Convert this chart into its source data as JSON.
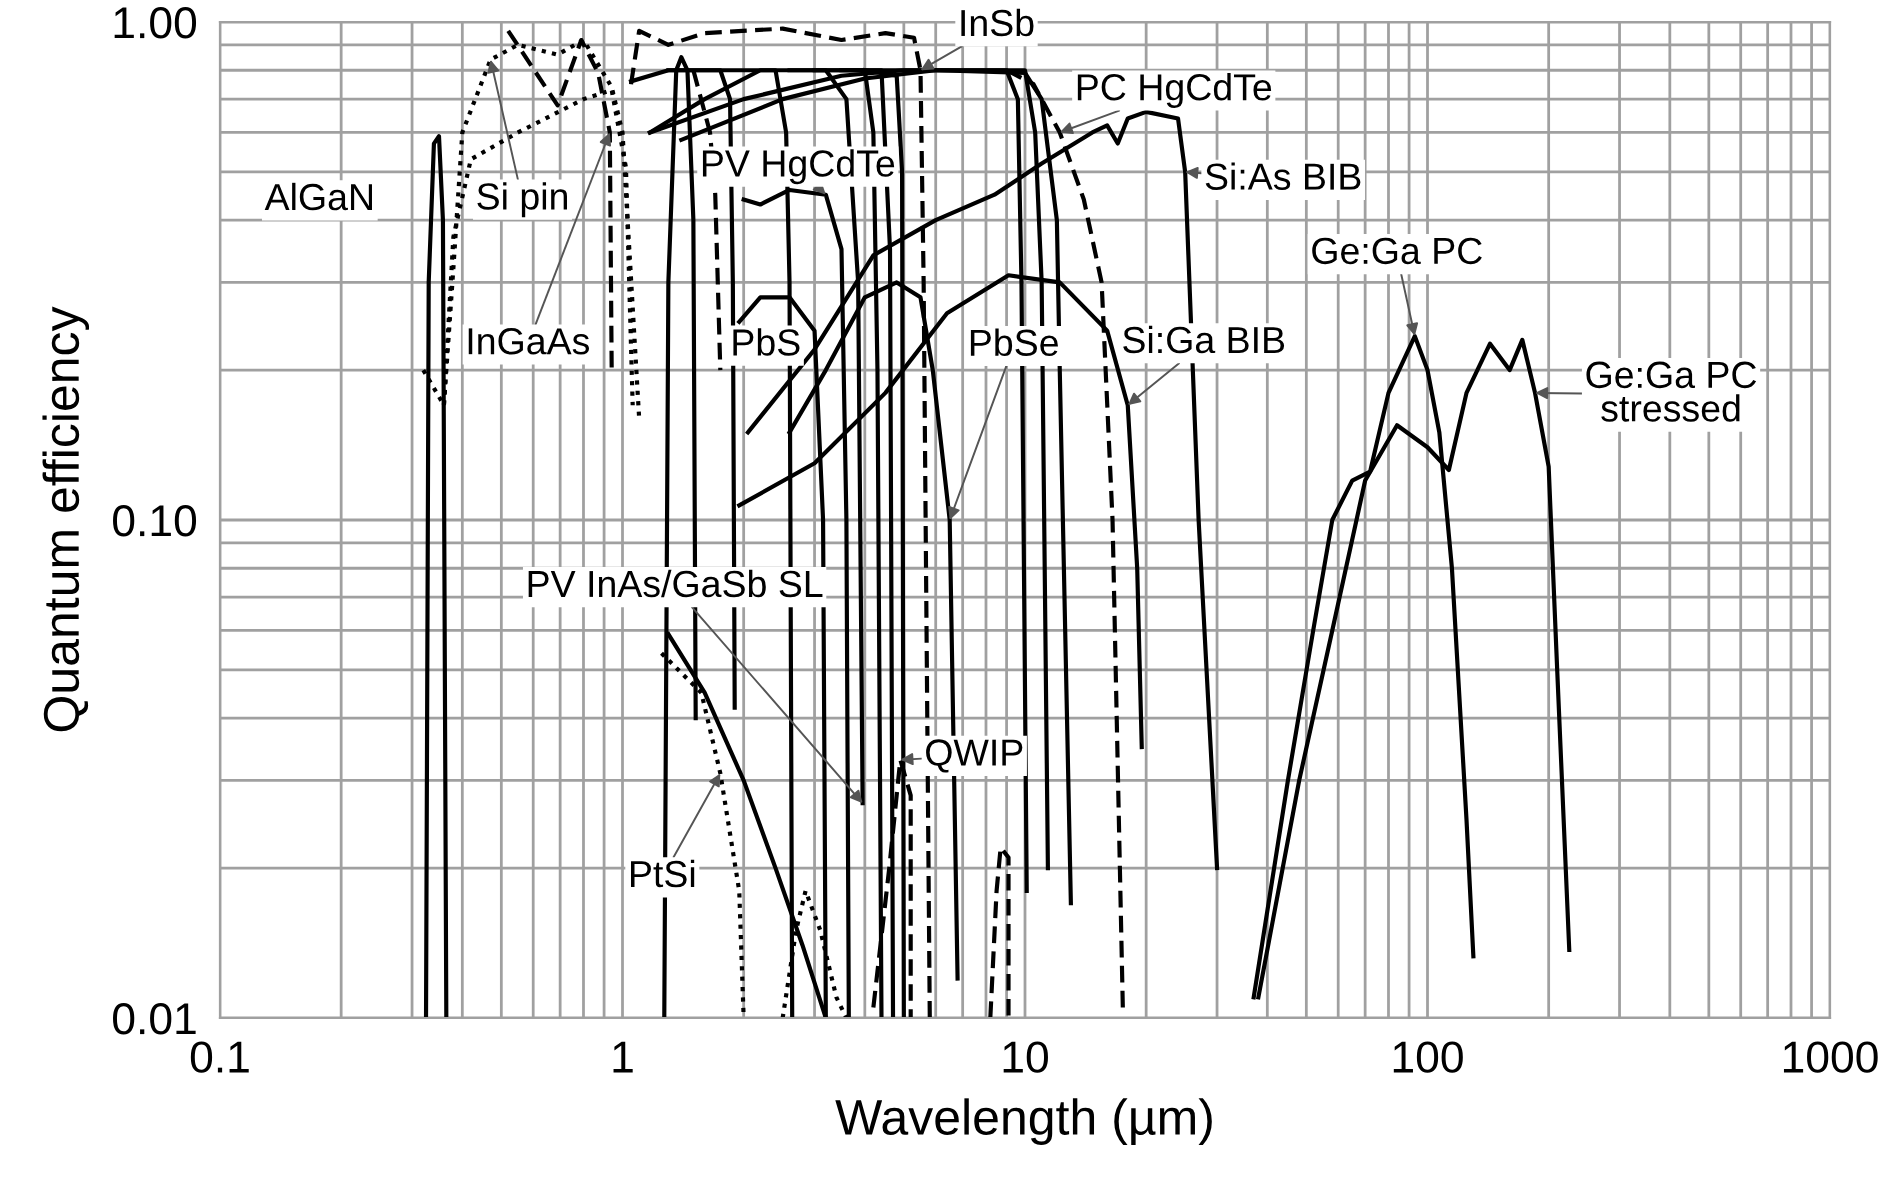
{
  "chart_data": {
    "type": "line",
    "xlabel": "Wavelength (µm)",
    "ylabel": "Quantum efficiency",
    "log": "xy",
    "xlim": [
      0.1,
      1000
    ],
    "ylim": [
      0.01,
      1
    ],
    "xticks": [
      0.1,
      1,
      10,
      100,
      1000
    ],
    "yticks": [
      {
        "value": 0.01,
        "label": "0.01"
      },
      {
        "value": 0.1,
        "label": "0.10"
      },
      {
        "value": 1,
        "label": "1.00"
      }
    ],
    "grid": true,
    "series": [
      {
        "color": "#000000",
        "line_style": "solid",
        "x": [
          0.325,
          0.33,
          0.34,
          0.35,
          0.358,
          0.365
        ],
        "values": [
          0.01,
          0.3,
          0.57,
          0.59,
          0.4,
          0.01
        ]
      },
      {
        "color": "#000000",
        "line_style": "dotted",
        "x": [
          0.32,
          0.36,
          0.38,
          0.4,
          0.47,
          0.55,
          0.69,
          0.8,
          0.94,
          1.0,
          1.1
        ],
        "values": [
          0.2,
          0.17,
          0.32,
          0.6,
          0.84,
          0.9,
          0.86,
          0.92,
          0.74,
          0.6,
          0.16
        ]
      },
      {
        "color": "#000000",
        "line_style": "dotted",
        "x": [
          0.36,
          0.38,
          0.42,
          0.55,
          0.8,
          0.94,
          1.02,
          1.06
        ],
        "values": [
          0.17,
          0.37,
          0.53,
          0.6,
          0.7,
          0.73,
          0.51,
          0.17
        ]
      },
      {
        "color": "#000000",
        "line_style": "dashed",
        "x": [
          0.52,
          0.69,
          0.79,
          0.87,
          0.93,
          0.94
        ],
        "values": [
          0.96,
          0.68,
          0.92,
          0.79,
          0.6,
          0.2
        ]
      },
      {
        "color": "#000000",
        "line_style": "dashed",
        "x": [
          1.05,
          1.1,
          1.3,
          1.6,
          2.5,
          3.5,
          4.5,
          5.3,
          5.5,
          5.6,
          5.8
        ],
        "values": [
          0.75,
          0.96,
          0.9,
          0.95,
          0.97,
          0.92,
          0.95,
          0.93,
          0.8,
          0.3,
          0.01
        ]
      },
      {
        "color": "#000000",
        "line_style": "dashed",
        "x": [
          1.5,
          1.65,
          1.7,
          1.75
        ],
        "values": [
          0.8,
          0.6,
          0.45,
          0.2
        ]
      },
      {
        "color": "#000000",
        "line_style": "solid",
        "x": [
          1.27,
          1.3,
          1.36,
          1.4,
          1.45,
          1.5,
          1.52
        ],
        "values": [
          0.01,
          0.3,
          0.8,
          0.85,
          0.8,
          0.4,
          0.04
        ]
      },
      {
        "color": "#000000",
        "line_style": "solid",
        "x": [
          1.05,
          1.3,
          1.75,
          1.85,
          1.88,
          1.9
        ],
        "values": [
          0.76,
          0.8,
          0.8,
          0.7,
          0.3,
          0.042
        ]
      },
      {
        "color": "#000000",
        "line_style": "solid",
        "x": [
          1.17,
          1.6,
          2.2,
          2.4,
          2.55,
          2.6,
          2.64
        ],
        "values": [
          0.6,
          0.7,
          0.8,
          0.8,
          0.6,
          0.3,
          0.01
        ]
      },
      {
        "color": "#000000",
        "line_style": "solid",
        "x": [
          1.95,
          2.2,
          2.6,
          3.0,
          3.15,
          3.2
        ],
        "values": [
          0.25,
          0.28,
          0.28,
          0.24,
          0.1,
          0.01
        ]
      },
      {
        "color": "#000000",
        "line_style": "solid",
        "x": [
          2.0,
          2.2,
          2.6,
          3.2,
          3.5,
          3.6,
          3.65
        ],
        "values": [
          0.44,
          0.43,
          0.46,
          0.45,
          0.35,
          0.1,
          0.01
        ]
      },
      {
        "color": "#000000",
        "line_style": "solid",
        "x": [
          1.3,
          3.2,
          3.6,
          3.85,
          3.95
        ],
        "values": [
          0.8,
          0.8,
          0.7,
          0.3,
          0.027
        ]
      },
      {
        "color": "#000000",
        "line_style": "solid",
        "x": [
          2.6,
          4.0,
          4.2,
          4.3,
          4.4
        ],
        "values": [
          0.8,
          0.8,
          0.6,
          0.2,
          0.01
        ]
      },
      {
        "color": "#000000",
        "line_style": "solid",
        "x": [
          3.5,
          4.4,
          4.62,
          4.7
        ],
        "values": [
          0.8,
          0.8,
          0.35,
          0.01
        ]
      },
      {
        "color": "#000000",
        "line_style": "solid",
        "x": [
          4.0,
          4.8,
          4.95,
          5.0
        ],
        "values": [
          0.8,
          0.78,
          0.5,
          0.01
        ]
      },
      {
        "color": "#000000",
        "line_style": "solid",
        "x": [
          2.05,
          3,
          4.2,
          6,
          8.4,
          11,
          14.7,
          16,
          17,
          18,
          20,
          24,
          25,
          27,
          30
        ],
        "values": [
          0.15,
          0.22,
          0.34,
          0.4,
          0.45,
          0.52,
          0.6,
          0.62,
          0.57,
          0.64,
          0.66,
          0.64,
          0.5,
          0.1,
          0.02
        ]
      },
      {
        "color": "#000000",
        "line_style": "solid",
        "x": [
          2.6,
          3.2,
          4.0,
          4.8,
          5.5,
          5.9,
          6.5,
          6.8
        ],
        "values": [
          0.15,
          0.2,
          0.28,
          0.3,
          0.28,
          0.2,
          0.1,
          0.012
        ]
      },
      {
        "color": "#000000",
        "line_style": "solid",
        "x": [
          1.95,
          3,
          4.5,
          6.4,
          9.1,
          12.2,
          16,
          18,
          19,
          19.5
        ],
        "values": [
          0.107,
          0.13,
          0.18,
          0.26,
          0.31,
          0.3,
          0.24,
          0.17,
          0.08,
          0.035
        ]
      },
      {
        "color": "#000000",
        "line_style": "solid",
        "x": [
          1.17,
          2,
          3.5,
          5,
          9,
          9.6,
          9.8,
          10.1
        ],
        "values": [
          0.6,
          0.7,
          0.78,
          0.8,
          0.8,
          0.7,
          0.3,
          0.018
        ]
      },
      {
        "color": "#000000",
        "line_style": "solid",
        "x": [
          1.4,
          2.5,
          4,
          6,
          10,
          10.6,
          11,
          11.4
        ],
        "values": [
          0.58,
          0.7,
          0.77,
          0.8,
          0.8,
          0.6,
          0.3,
          0.02
        ]
      },
      {
        "color": "#000000",
        "line_style": "solid",
        "x": [
          3,
          6,
          10,
          11,
          12,
          12.2,
          13
        ],
        "values": [
          0.8,
          0.8,
          0.79,
          0.7,
          0.4,
          0.2,
          0.017
        ]
      },
      {
        "color": "#000000",
        "line_style": "dashed",
        "x": [
          9,
          10.5,
          12.2,
          14,
          15.5,
          16.5,
          17.5
        ],
        "values": [
          0.8,
          0.75,
          0.6,
          0.44,
          0.3,
          0.1,
          0.0105
        ]
      },
      {
        "color": "#000000",
        "line_style": "solid",
        "x": [
          37,
          45,
          52,
          58,
          65,
          72,
          80,
          93,
          100,
          107,
          115,
          125,
          130
        ],
        "values": [
          0.011,
          0.03,
          0.06,
          0.1,
          0.12,
          0.125,
          0.18,
          0.234,
          0.2,
          0.15,
          0.08,
          0.025,
          0.0133
        ]
      },
      {
        "color": "#000000",
        "line_style": "solid",
        "x": [
          38,
          48,
          58,
          70,
          84,
          100,
          113,
          125,
          143,
          160,
          172,
          185,
          200,
          210,
          225
        ],
        "values": [
          0.011,
          0.03,
          0.06,
          0.12,
          0.155,
          0.14,
          0.126,
          0.18,
          0.226,
          0.2,
          0.23,
          0.18,
          0.128,
          0.05,
          0.0137
        ]
      },
      {
        "color": "#000000",
        "line_style": "solid",
        "x": [
          1.3,
          1.6,
          2.0,
          2.4,
          2.8,
          3.2
        ],
        "values": [
          0.059,
          0.045,
          0.03,
          0.02,
          0.014,
          0.01
        ]
      },
      {
        "color": "#000000",
        "line_style": "dotted",
        "x": [
          1.25,
          1.57,
          1.75,
          1.95,
          2.0
        ],
        "values": [
          0.054,
          0.045,
          0.031,
          0.018,
          0.01
        ]
      },
      {
        "color": "#000000",
        "line_style": "dotted",
        "x": [
          2.5,
          2.7,
          2.85,
          3.1,
          3.4,
          3.6
        ],
        "values": [
          0.01,
          0.015,
          0.018,
          0.015,
          0.011,
          0.01
        ]
      },
      {
        "color": "#000000",
        "line_style": "dashed",
        "x": [
          4.2,
          4.6,
          4.9,
          5.2,
          5.2
        ],
        "values": [
          0.0105,
          0.02,
          0.033,
          0.028,
          0.01
        ]
      },
      {
        "color": "#000000",
        "line_style": "dashed",
        "x": [
          8.2,
          8.5,
          8.7,
          9.1,
          9.1
        ],
        "values": [
          0.01,
          0.018,
          0.022,
          0.021,
          0.01
        ]
      }
    ],
    "annotations": [
      "AlGaN",
      {
        "text": "Si pin",
        "x": 0.47,
        "y": 0.84
      },
      {
        "text": "InGaAs",
        "x": 0.93,
        "y": 0.6
      },
      {
        "text": "PV HgCdTe",
        "x": 3.2,
        "y": 0.45
      },
      {
        "text": "InSb",
        "x": 5.5,
        "y": 0.8
      },
      {
        "text": "PC HgCdTe",
        "x": 12.2,
        "y": 0.6
      },
      {
        "text": "Si:As BIB",
        "x": 25,
        "y": 0.5
      },
      {
        "text": "Ge:Ga PC",
        "x": 93,
        "y": 0.234
      },
      {
        "text": "Si:Ga BIB",
        "x": 18,
        "y": 0.17
      },
      "PbS",
      {
        "text": "PbSe",
        "x": 6.5,
        "y": 0.1
      },
      {
        "text": "Ge:Ga PC\nstressed",
        "x": 185,
        "y": 0.18
      },
      {
        "text": "PV InAs/GaSb SL",
        "x": 3.95,
        "y": 0.027
      },
      {
        "text": "QWIP",
        "x": 4.9,
        "y": 0.033
      },
      {
        "text": "PtSi",
        "x": 1.75,
        "y": 0.031
      }
    ]
  }
}
